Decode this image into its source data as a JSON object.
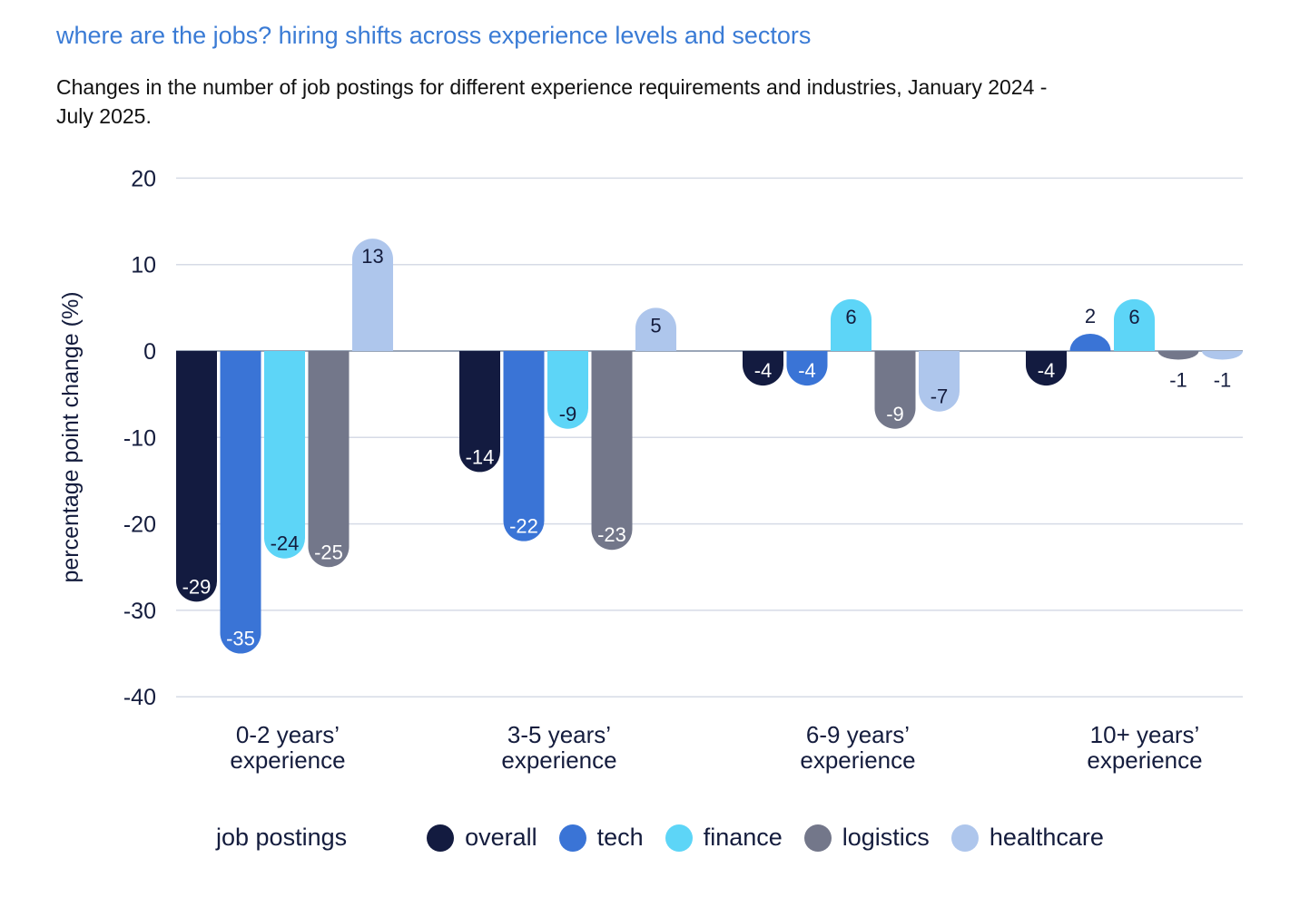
{
  "header": {
    "title": "where are the jobs? hiring shifts across experience levels and sectors",
    "subtitle": "Changes in the number of job postings for different experience requirements and industries, January 2024 - July 2025."
  },
  "legend": {
    "title": "job postings"
  },
  "chart_data": {
    "type": "bar",
    "ylabel": "percentage point change (%)",
    "ylim": [
      -40,
      20
    ],
    "yticks": [
      20,
      10,
      0,
      -10,
      -20,
      -30,
      -40
    ],
    "grid": true,
    "legend_position": "bottom",
    "categories": [
      [
        "0-2 years’",
        "experience"
      ],
      [
        "3-5 years’",
        "experience"
      ],
      [
        "6-9 years’",
        "experience"
      ],
      [
        "10+ years’",
        "experience"
      ]
    ],
    "series": [
      {
        "name": "overall",
        "color": "#131b40",
        "label_color": "#ffffff",
        "values": [
          -29,
          -14,
          -4,
          -4
        ]
      },
      {
        "name": "tech",
        "color": "#3a74d6",
        "label_color": "#ffffff",
        "values": [
          -35,
          -22,
          -4,
          2
        ]
      },
      {
        "name": "finance",
        "color": "#5dd5f7",
        "label_color": "#141c3d",
        "values": [
          -24,
          -9,
          6,
          6
        ]
      },
      {
        "name": "logistics",
        "color": "#73778a",
        "label_color": "#ffffff",
        "values": [
          -25,
          -23,
          -9,
          -1
        ]
      },
      {
        "name": "healthcare",
        "color": "#aec6ec",
        "label_color": "#141c3d",
        "values": [
          13,
          5,
          -7,
          -1
        ]
      }
    ]
  }
}
